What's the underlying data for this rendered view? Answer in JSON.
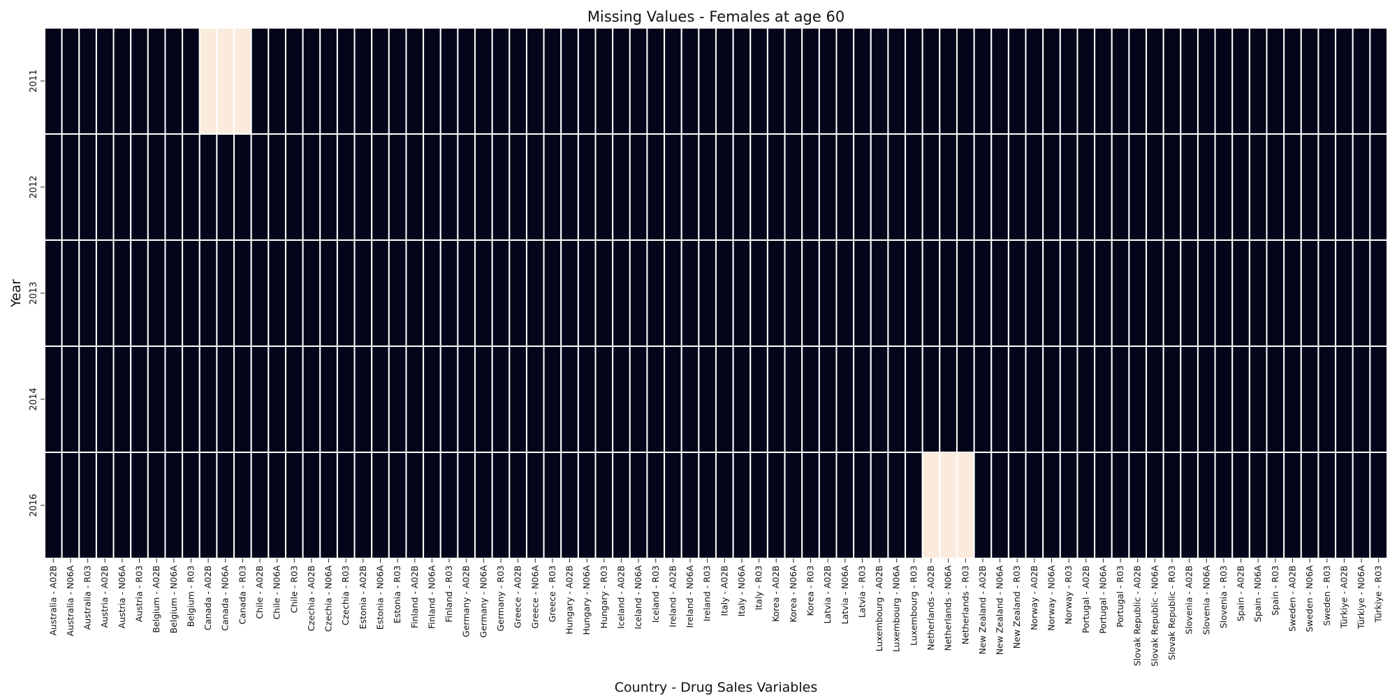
{
  "chart_data": {
    "type": "heatmap",
    "title": "Missing Values - Females at age 60",
    "xlabel": "Country - Drug Sales Variables",
    "ylabel": "Year",
    "rows": [
      "2011",
      "2012",
      "2013",
      "2014",
      "2016"
    ],
    "columns": [
      "Australia - A02B",
      "Australia - N06A",
      "Australia - R03",
      "Austria - A02B",
      "Austria - N06A",
      "Austria - R03",
      "Belgium - A02B",
      "Belgium - N06A",
      "Belgium - R03",
      "Canada - A02B",
      "Canada - N06A",
      "Canada - R03",
      "Chile - A02B",
      "Chile - N06A",
      "Chile - R03",
      "Czechia - A02B",
      "Czechia - N06A",
      "Czechia - R03",
      "Estonia - A02B",
      "Estonia - N06A",
      "Estonia - R03",
      "Finland - A02B",
      "Finland - N06A",
      "Finland - R03",
      "Germany - A02B",
      "Germany - N06A",
      "Germany - R03",
      "Greece - A02B",
      "Greece - N06A",
      "Greece - R03",
      "Hungary - A02B",
      "Hungary - N06A",
      "Hungary - R03",
      "Iceland - A02B",
      "Iceland - N06A",
      "Iceland - R03",
      "Ireland - A02B",
      "Ireland - N06A",
      "Ireland - R03",
      "Italy - A02B",
      "Italy - N06A",
      "Italy - R03",
      "Korea - A02B",
      "Korea - N06A",
      "Korea - R03",
      "Latvia - A02B",
      "Latvia - N06A",
      "Latvia - R03",
      "Luxembourg - A02B",
      "Luxembourg - N06A",
      "Luxembourg - R03",
      "Netherlands - A02B",
      "Netherlands - N06A",
      "Netherlands - R03",
      "New Zealand - A02B",
      "New Zealand - N06A",
      "New Zealand - R03",
      "Norway - A02B",
      "Norway - N06A",
      "Norway - R03",
      "Portugal - A02B",
      "Portugal - N06A",
      "Portugal - R03",
      "Slovak Republic - A02B",
      "Slovak Republic - N06A",
      "Slovak Republic - R03",
      "Slovenia - A02B",
      "Slovenia - N06A",
      "Slovenia - R03",
      "Spain - A02B",
      "Spain - N06A",
      "Spain - R03",
      "Sweden - A02B",
      "Sweden - N06A",
      "Sweden - R03",
      "Türkiye - A02B",
      "Türkiye - N06A",
      "Türkiye - R03"
    ],
    "missing": [
      {
        "row": "2011",
        "columns": [
          "Canada - A02B",
          "Canada - N06A",
          "Canada - R03"
        ]
      },
      {
        "row": "2016",
        "columns": [
          "Netherlands - A02B",
          "Netherlands - N06A",
          "Netherlands - R03"
        ]
      }
    ],
    "colors": {
      "present": "#03051a",
      "missing": "#faebdd",
      "cell_border": "#ffffff"
    },
    "colorbar": false,
    "grid": false
  }
}
